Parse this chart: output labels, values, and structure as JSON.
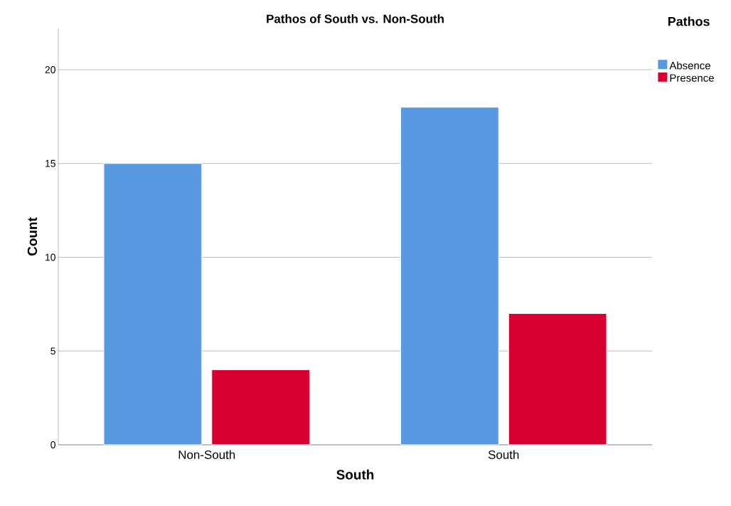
{
  "chart_data": {
    "type": "bar",
    "title": "Pathos of South vs. Non-South",
    "xlabel": "South",
    "ylabel": "Count",
    "legend_title": "Pathos",
    "categories": [
      "Non-South",
      "South"
    ],
    "series": [
      {
        "name": "Absence",
        "color": "#5899e2",
        "values": [
          15,
          18
        ]
      },
      {
        "name": "Presence",
        "color": "#d70030",
        "values": [
          4,
          7
        ]
      }
    ],
    "ylim": [
      0,
      22.2
    ],
    "yticks": [
      0,
      5,
      10,
      15,
      20
    ],
    "grid": "y",
    "legend": "top right"
  }
}
